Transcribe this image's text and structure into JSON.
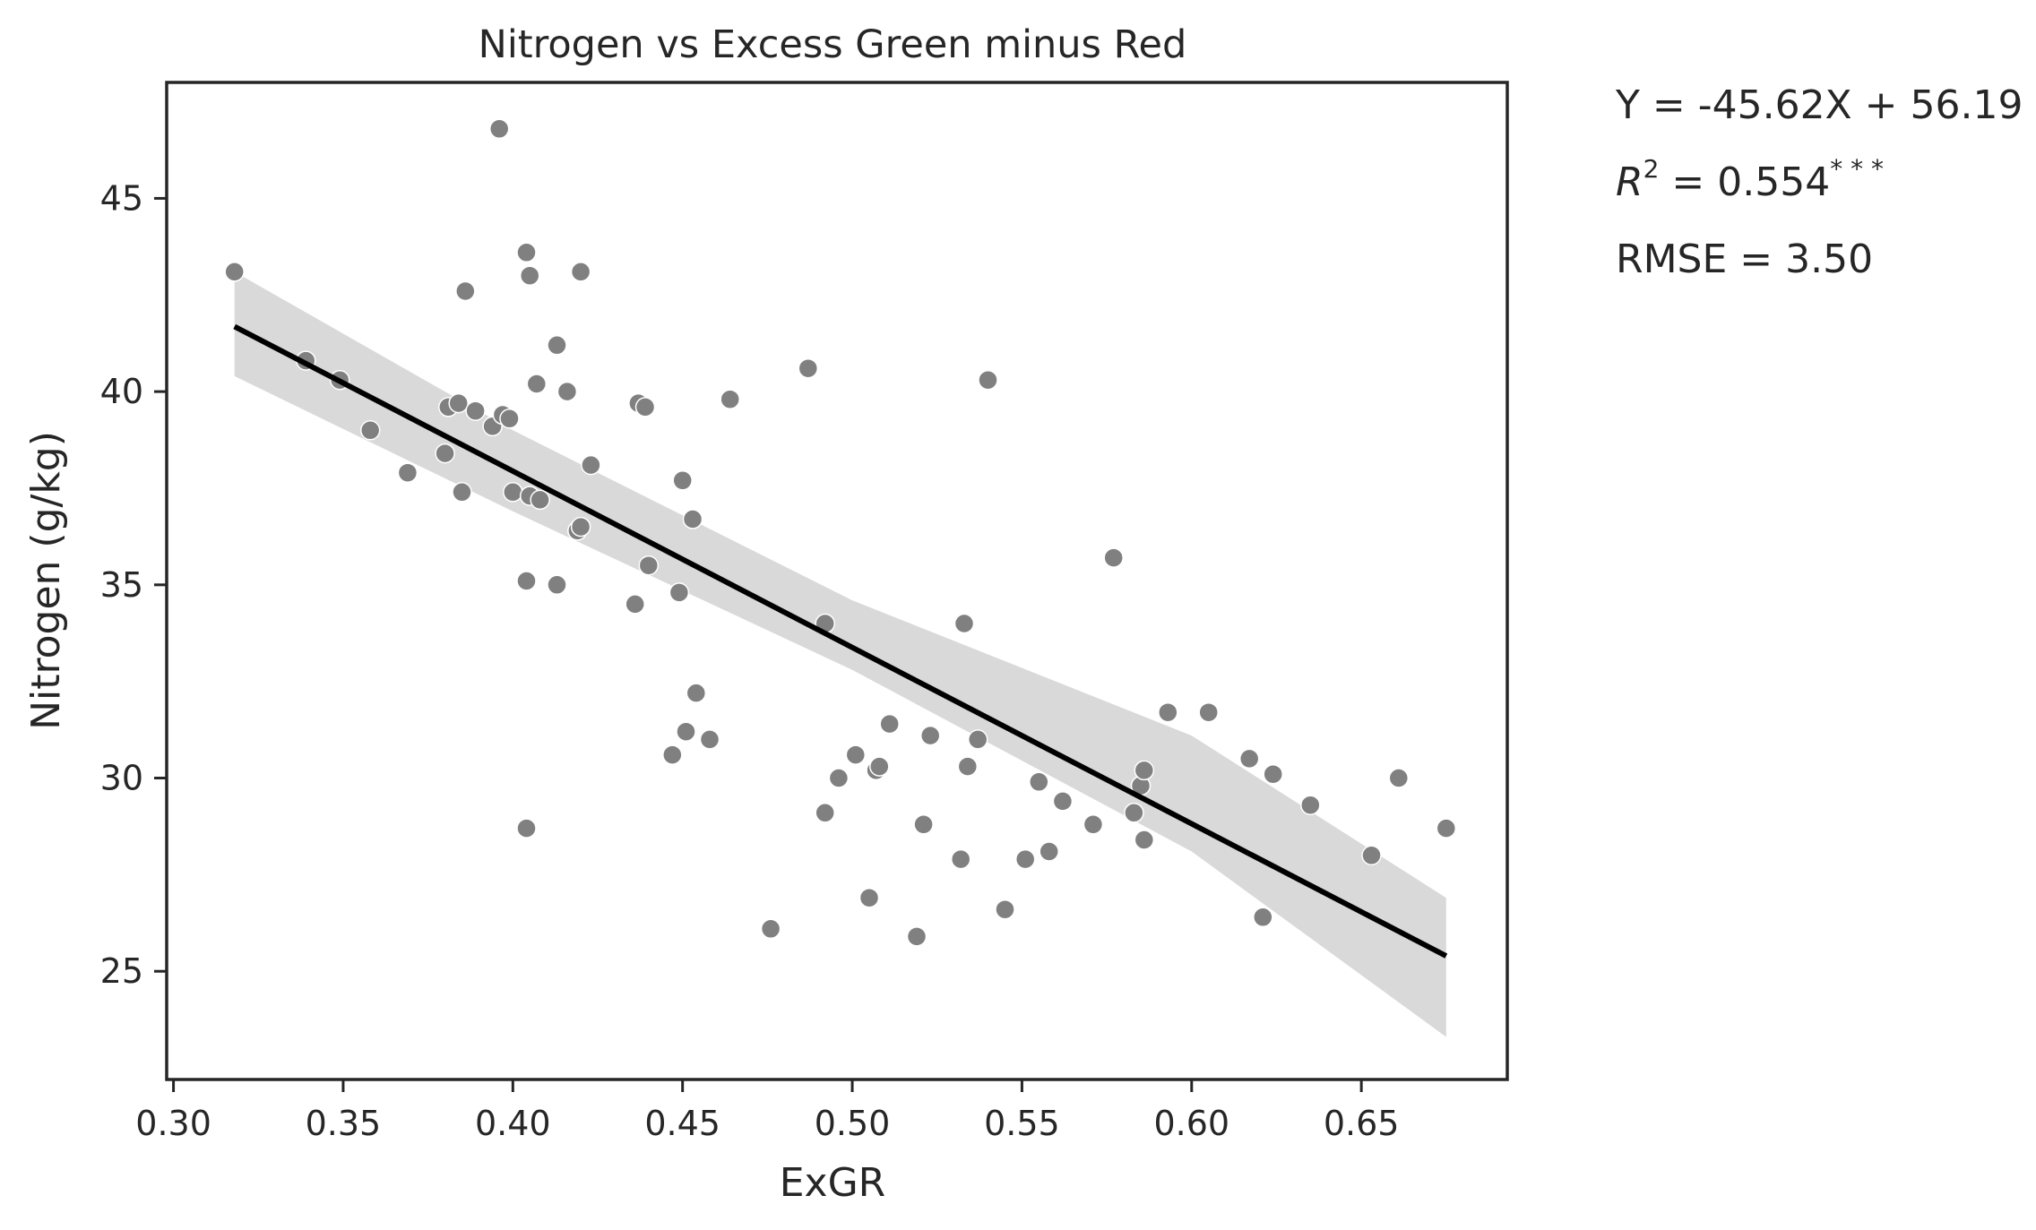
{
  "chart_data": {
    "type": "scatter",
    "title": "Nitrogen vs Excess Green minus Red",
    "xlabel": "ExGR",
    "ylabel": "Nitrogen (g/kg)",
    "xlim": [
      0.298,
      0.693
    ],
    "ylim": [
      22.2,
      48.0
    ],
    "x_ticks": [
      0.3,
      0.35,
      0.4,
      0.45,
      0.5,
      0.55,
      0.6,
      0.65
    ],
    "x_tick_labels": [
      "0.30",
      "0.35",
      "0.40",
      "0.45",
      "0.50",
      "0.55",
      "0.60",
      "0.65"
    ],
    "y_ticks": [
      25,
      30,
      35,
      40,
      45
    ],
    "y_tick_labels": [
      "25",
      "30",
      "35",
      "40",
      "45"
    ],
    "grid": false,
    "point_color": "#808080",
    "line_color": "#000000",
    "band_color": "#d9d9d9",
    "regression": {
      "slope": -45.62,
      "intercept": 56.19,
      "x_range": [
        0.318,
        0.675
      ],
      "ci_upper": [
        [
          0.318,
          43.1
        ],
        [
          0.4,
          39.0
        ],
        [
          0.5,
          34.6
        ],
        [
          0.6,
          31.1
        ],
        [
          0.675,
          26.9
        ]
      ],
      "ci_lower": [
        [
          0.318,
          40.4
        ],
        [
          0.4,
          36.9
        ],
        [
          0.5,
          32.8
        ],
        [
          0.6,
          28.1
        ],
        [
          0.675,
          23.3
        ]
      ]
    },
    "series": [
      {
        "points": [
          [
            0.318,
            43.1
          ],
          [
            0.339,
            40.8
          ],
          [
            0.349,
            40.3
          ],
          [
            0.358,
            39.0
          ],
          [
            0.369,
            37.9
          ],
          [
            0.38,
            38.4
          ],
          [
            0.381,
            39.6
          ],
          [
            0.384,
            39.7
          ],
          [
            0.385,
            37.4
          ],
          [
            0.386,
            42.6
          ],
          [
            0.389,
            39.5
          ],
          [
            0.394,
            39.1
          ],
          [
            0.396,
            46.8
          ],
          [
            0.397,
            39.4
          ],
          [
            0.399,
            39.3
          ],
          [
            0.4,
            37.4
          ],
          [
            0.404,
            43.6
          ],
          [
            0.404,
            35.1
          ],
          [
            0.404,
            28.7
          ],
          [
            0.405,
            43.0
          ],
          [
            0.405,
            37.3
          ],
          [
            0.407,
            40.2
          ],
          [
            0.408,
            37.2
          ],
          [
            0.413,
            41.2
          ],
          [
            0.413,
            35.0
          ],
          [
            0.416,
            40.0
          ],
          [
            0.419,
            36.4
          ],
          [
            0.42,
            43.1
          ],
          [
            0.42,
            36.5
          ],
          [
            0.423,
            38.1
          ],
          [
            0.436,
            34.5
          ],
          [
            0.437,
            39.7
          ],
          [
            0.439,
            39.6
          ],
          [
            0.44,
            35.5
          ],
          [
            0.447,
            30.6
          ],
          [
            0.449,
            34.8
          ],
          [
            0.45,
            37.7
          ],
          [
            0.451,
            31.2
          ],
          [
            0.453,
            36.7
          ],
          [
            0.454,
            32.2
          ],
          [
            0.458,
            31.0
          ],
          [
            0.464,
            39.8
          ],
          [
            0.476,
            26.1
          ],
          [
            0.487,
            40.6
          ],
          [
            0.492,
            34.0
          ],
          [
            0.492,
            29.1
          ],
          [
            0.496,
            30.0
          ],
          [
            0.501,
            30.6
          ],
          [
            0.505,
            26.9
          ],
          [
            0.507,
            30.2
          ],
          [
            0.508,
            30.3
          ],
          [
            0.511,
            31.4
          ],
          [
            0.519,
            25.9
          ],
          [
            0.521,
            28.8
          ],
          [
            0.523,
            31.1
          ],
          [
            0.532,
            27.9
          ],
          [
            0.533,
            34.0
          ],
          [
            0.534,
            30.3
          ],
          [
            0.537,
            31.0
          ],
          [
            0.54,
            40.3
          ],
          [
            0.545,
            26.6
          ],
          [
            0.551,
            27.9
          ],
          [
            0.555,
            29.9
          ],
          [
            0.558,
            28.1
          ],
          [
            0.562,
            29.4
          ],
          [
            0.571,
            28.8
          ],
          [
            0.577,
            35.7
          ],
          [
            0.583,
            29.1
          ],
          [
            0.585,
            29.8
          ],
          [
            0.586,
            30.2
          ],
          [
            0.586,
            28.4
          ],
          [
            0.593,
            31.7
          ],
          [
            0.605,
            31.7
          ],
          [
            0.617,
            30.5
          ],
          [
            0.621,
            26.4
          ],
          [
            0.624,
            30.1
          ],
          [
            0.635,
            29.3
          ],
          [
            0.653,
            28.0
          ],
          [
            0.661,
            30.0
          ],
          [
            0.675,
            28.7
          ]
        ]
      }
    ]
  },
  "annotations": {
    "equation": "Y = -45.62X + 56.19",
    "r2_symbol": "R",
    "r2_power": "2",
    "r2_value": " = 0.554",
    "r2_significance": "* * *",
    "rmse": "RMSE = 3.50"
  }
}
